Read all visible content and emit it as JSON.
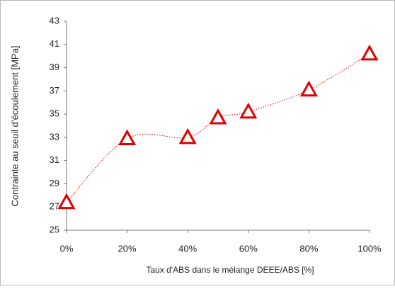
{
  "chart_data": {
    "type": "scatter",
    "x_label": "Taux d'ABS dans le mélange DEEE/ABS [%]",
    "y_label": "Contrainte au seuil d’écoulement [MPa]",
    "series": [
      {
        "color": "#e00000",
        "x": [
          0,
          20,
          40,
          50,
          60,
          80,
          100
        ],
        "values": [
          27.4,
          32.9,
          33.0,
          34.7,
          35.2,
          37.1,
          40.2
        ]
      }
    ],
    "smooth_line": true,
    "xlim": [
      0,
      100
    ],
    "xticks": [
      {
        "value": 0,
        "label": "0%"
      },
      {
        "value": 20,
        "label": "20%"
      },
      {
        "value": 40,
        "label": "40%"
      },
      {
        "value": 60,
        "label": "60%"
      },
      {
        "value": 80,
        "label": "80%"
      },
      {
        "value": 100,
        "label": "100%"
      }
    ],
    "ylim": [
      25,
      43
    ],
    "yticks": [
      25,
      27,
      29,
      31,
      33,
      35,
      37,
      39,
      41,
      43
    ],
    "grid": false
  }
}
